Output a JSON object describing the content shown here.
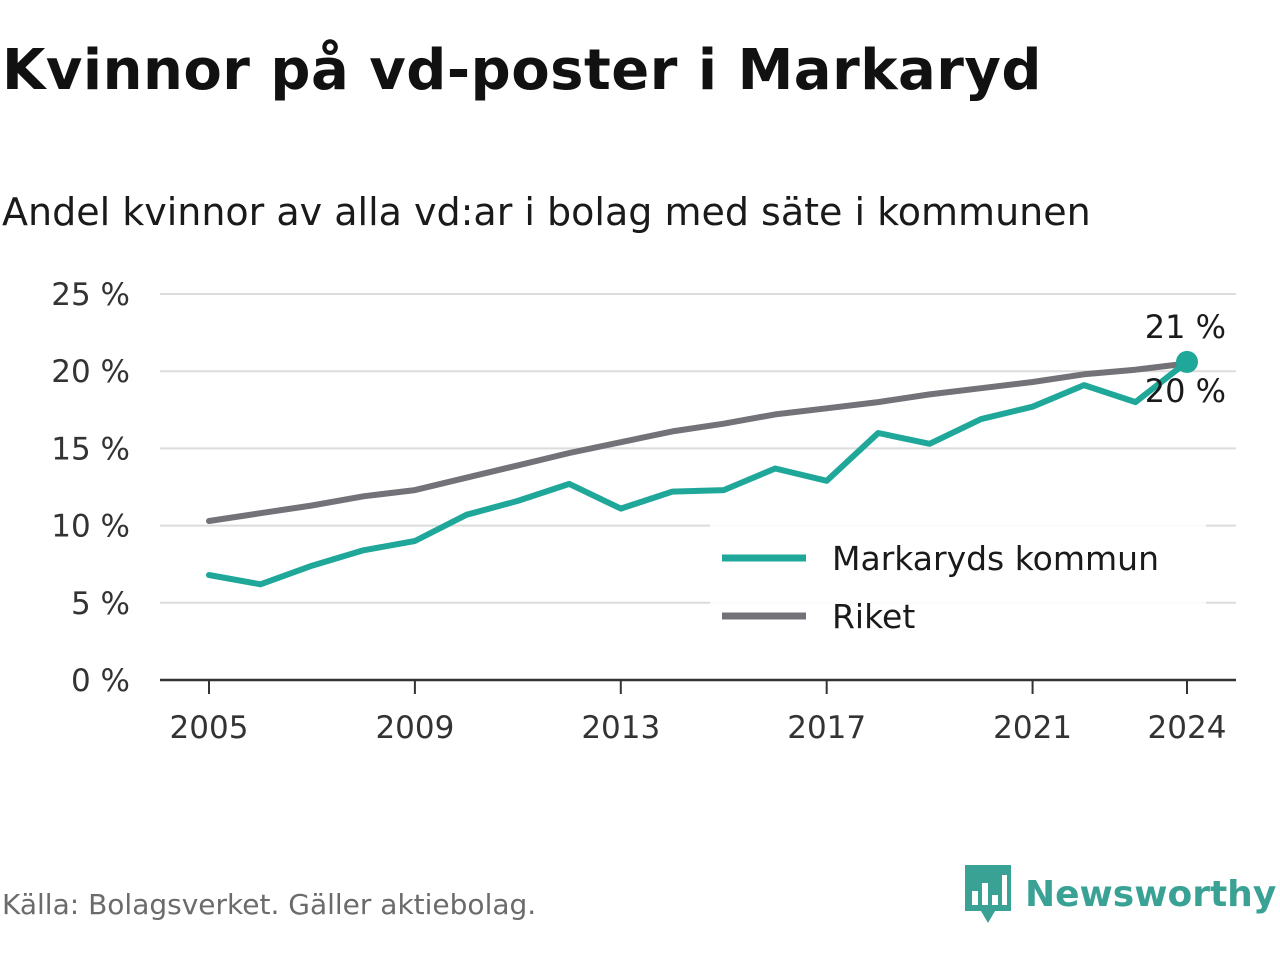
{
  "title": "Kvinnor på vd-poster i Markaryd",
  "subtitle": "Andel kvinnor av alla vd:ar i bolag med säte i kommunen",
  "source": "Källa: Bolagsverket. Gäller aktiebolag.",
  "brand": {
    "name": "Newsworthy",
    "icon": "newsworthy-chart-logo-icon",
    "color": "#3aa195"
  },
  "chart_data": {
    "type": "line",
    "ylim": [
      0,
      25
    ],
    "y_ticks": [
      0,
      5,
      10,
      15,
      20,
      25
    ],
    "y_tick_labels": [
      "0 %",
      "5 %",
      "10 %",
      "15 %",
      "20 %",
      "25 %"
    ],
    "x_ticks": [
      2005,
      2009,
      2013,
      2017,
      2021,
      2024
    ],
    "x_tick_labels": [
      "2005",
      "2009",
      "2013",
      "2017",
      "2021",
      "2024"
    ],
    "grid": true,
    "legend": "inside, center-right",
    "x": [
      2005,
      2006,
      2007,
      2008,
      2009,
      2010,
      2011,
      2012,
      2013,
      2014,
      2015,
      2016,
      2017,
      2018,
      2019,
      2020,
      2021,
      2022,
      2023,
      2024
    ],
    "series": [
      {
        "name": "Markaryds kommun",
        "color": "#1fa89a",
        "values": [
          6.8,
          6.2,
          7.4,
          8.4,
          9.0,
          10.7,
          11.6,
          12.7,
          11.1,
          12.2,
          12.3,
          13.7,
          12.9,
          16.0,
          15.3,
          16.9,
          17.7,
          19.1,
          18.0,
          20.6
        ],
        "end_label": "21 %"
      },
      {
        "name": "Riket",
        "color": "#737278",
        "values": [
          10.3,
          10.8,
          11.3,
          11.9,
          12.3,
          13.1,
          13.9,
          14.7,
          15.4,
          16.1,
          16.6,
          17.2,
          17.6,
          18.0,
          18.5,
          18.9,
          19.3,
          19.8,
          20.1,
          20.5
        ],
        "end_label": "20 %"
      }
    ]
  }
}
